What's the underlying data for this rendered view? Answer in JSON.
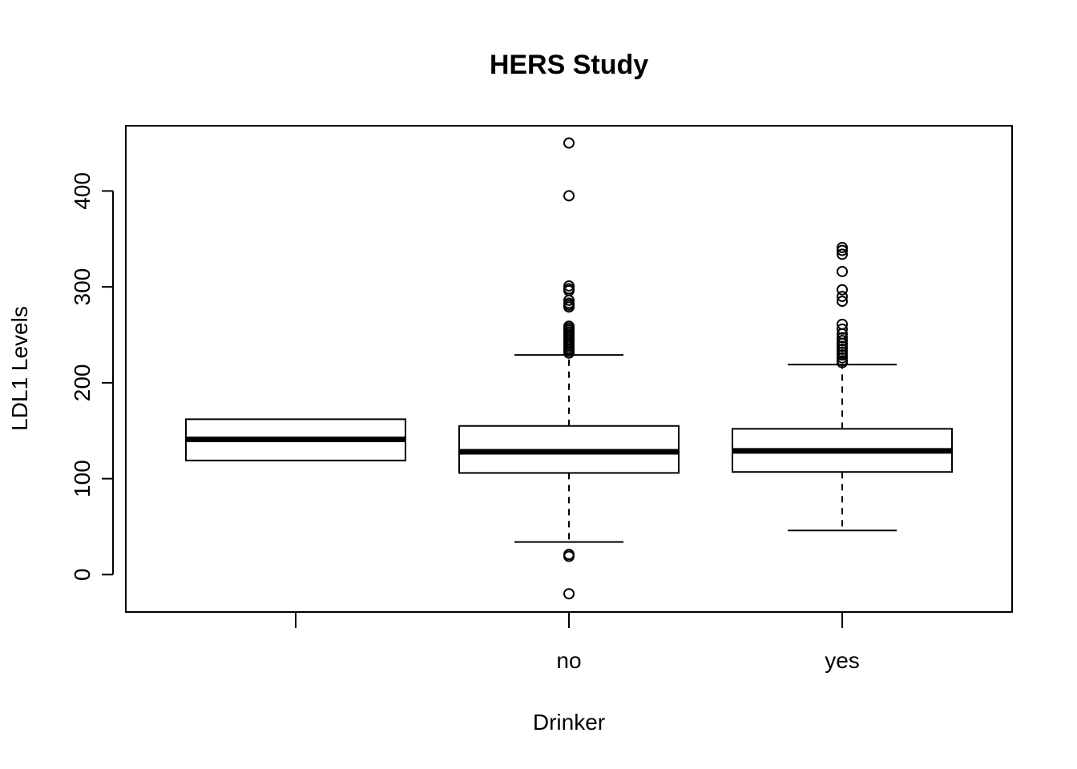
{
  "chart_data": {
    "type": "box",
    "title": "HERS Study",
    "xlabel": "Drinker",
    "ylabel": "LDL1 Levels",
    "ylim": [
      -39,
      468
    ],
    "yticks": [
      0,
      100,
      200,
      300,
      400
    ],
    "categories": [
      "",
      "no",
      "yes"
    ],
    "boxes": [
      {
        "category": "",
        "q1": 119,
        "median": 141,
        "q3": 162,
        "whisker_low": null,
        "whisker_high": null,
        "outliers": []
      },
      {
        "category": "no",
        "q1": 106,
        "median": 128,
        "q3": 155,
        "whisker_low": 34,
        "whisker_high": 229,
        "outliers": [
          450,
          395,
          301,
          298,
          296,
          286,
          283,
          281,
          279,
          259,
          257,
          255,
          253,
          251,
          249,
          247,
          245,
          243,
          241,
          239,
          237,
          235,
          233,
          231,
          21,
          19,
          -20
        ]
      },
      {
        "category": "yes",
        "q1": 107,
        "median": 129,
        "q3": 152,
        "whisker_low": 46,
        "whisker_high": 219,
        "outliers": [
          341,
          338,
          334,
          316,
          297,
          290,
          285,
          261,
          256,
          251,
          247,
          244,
          241,
          238,
          235,
          232,
          229,
          226,
          223,
          221
        ]
      }
    ],
    "grid": false,
    "legend": "none"
  }
}
